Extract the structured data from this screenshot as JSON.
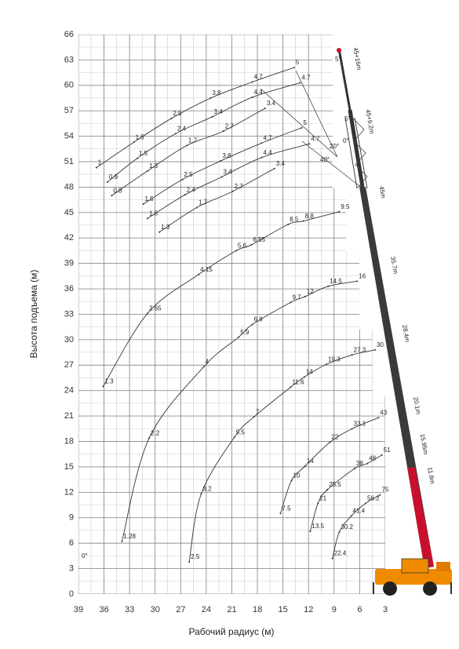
{
  "chart_data": {
    "type": "line",
    "xlabel": "Рабочий радиус (м)",
    "ylabel": "Высота подъема (м)",
    "xlim": [
      39,
      3
    ],
    "ylim": [
      0,
      66
    ],
    "xticks": [
      39,
      36,
      33,
      30,
      27,
      24,
      21,
      18,
      15,
      12,
      9,
      6,
      3
    ],
    "yticks": [
      0,
      3,
      6,
      9,
      12,
      15,
      18,
      21,
      24,
      27,
      30,
      33,
      36,
      39,
      42,
      45,
      48,
      51,
      54,
      57,
      60,
      63,
      66
    ],
    "grid": true,
    "color": "#333333",
    "series": [
      {
        "x": [
          9.2,
          8.4,
          7.0,
          5.3,
          3.6
        ],
        "y": [
          4.2,
          7.3,
          9.2,
          10.7,
          11.7
        ],
        "loads": [
          22.4,
          30.2,
          41.4,
          56.2,
          75
        ]
      },
      {
        "x": [
          11.8,
          10.9,
          9.8,
          6.6,
          5.1,
          3.4
        ],
        "y": [
          7.4,
          10.7,
          12.3,
          14.8,
          15.4,
          16.4
        ],
        "loads": [
          13.5,
          21,
          25.5,
          38,
          48,
          51
        ]
      },
      {
        "x": [
          15.3,
          14.0,
          12.4,
          9.5,
          6.9,
          3.8
        ],
        "y": [
          9.5,
          13.4,
          15.1,
          17.9,
          19.5,
          20.8
        ],
        "loads": [
          7.5,
          10,
          14,
          22,
          33.1,
          43
        ]
      },
      {
        "x": [
          26.0,
          24.6,
          20.7,
          18.4,
          14.1,
          12.5,
          9.9,
          6.9,
          4.2
        ],
        "y": [
          3.8,
          11.8,
          18.5,
          20.9,
          24.4,
          25.6,
          27.1,
          28.2,
          28.8
        ],
        "loads": [
          2.5,
          3.2,
          5.5,
          7,
          11.6,
          14,
          19.3,
          27.3,
          30
        ]
      },
      {
        "x": [
          33.9,
          30.7,
          24.3,
          20.2,
          18.6,
          14.1,
          12.4,
          9.7,
          6.3
        ],
        "y": [
          6.2,
          18.4,
          26.8,
          30.3,
          31.8,
          34.4,
          35.1,
          36.3,
          36.9
        ],
        "loads": [
          1.28,
          2.2,
          4,
          5.9,
          6.9,
          9.7,
          12,
          14.5,
          16
        ]
      },
      {
        "x": [
          36.1,
          30.9,
          24.9,
          20.5,
          18.7,
          14.4,
          12.6,
          8.4
        ],
        "y": [
          24.5,
          33.1,
          37.7,
          40.5,
          41.2,
          43.6,
          44.0,
          45.1
        ],
        "loads": [
          1.3,
          2.65,
          4.15,
          5.6,
          6.55,
          8.5,
          8.8,
          9.5
        ]
      },
      {
        "x": [
          36.9,
          32.5,
          28.1,
          23.5,
          18.6,
          13.7
        ],
        "y": [
          50.3,
          53.3,
          56.1,
          58.5,
          60.4,
          62.1
        ],
        "loads": [
          1,
          1.5,
          2.5,
          3.8,
          4.7,
          5
        ]
      },
      {
        "x": [
          35.6,
          32.1,
          27.6,
          23.3,
          18.6,
          13.0
        ],
        "y": [
          48.6,
          51.4,
          54.3,
          56.3,
          58.6,
          60.3
        ],
        "loads": [
          0.9,
          1.5,
          2.4,
          3.4,
          4.4,
          4.7
        ]
      },
      {
        "x": [
          35.1,
          30.9,
          26.3,
          22.0,
          17.1
        ],
        "y": [
          47.0,
          49.9,
          52.9,
          54.6,
          57.3
        ],
        "loads": [
          0.8,
          1.3,
          1.7,
          2.7,
          3.4
        ]
      },
      {
        "x": [
          31.4,
          26.8,
          22.3,
          17.5,
          12.8
        ],
        "y": [
          46.0,
          48.9,
          51.1,
          53.2,
          55.0
        ],
        "loads": [
          1.5,
          2.5,
          3.8,
          4.7,
          5
        ]
      },
      {
        "x": [
          30.9,
          26.5,
          22.2,
          17.5,
          11.9
        ],
        "y": [
          44.3,
          47.1,
          49.2,
          51.5,
          53.1
        ],
        "loads": [
          1.5,
          2.4,
          3.4,
          4.4,
          4.7
        ]
      },
      {
        "x": [
          29.5,
          25.1,
          20.9,
          16.0
        ],
        "y": [
          42.7,
          45.6,
          47.5,
          50.2
        ],
        "loads": [
          1.3,
          1.7,
          2.7,
          3.4
        ]
      }
    ],
    "angle_labels": [
      "0°",
      "0°",
      "20°",
      "40°",
      "5°",
      "5°"
    ],
    "boom_labels": [
      "45+16m",
      "45+9.2m",
      "45m",
      "35.7m",
      "28.4m",
      "20.1m",
      "15.95m",
      "11.8m"
    ]
  }
}
